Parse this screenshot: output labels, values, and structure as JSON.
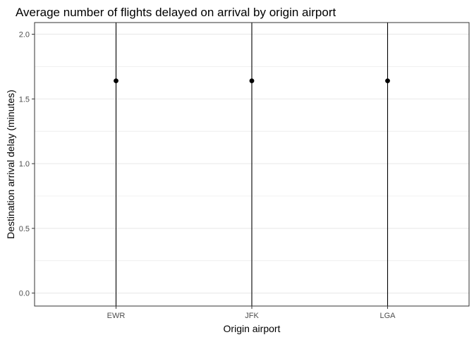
{
  "chart_data": {
    "type": "scatter",
    "title": "Average number of flights delayed on arrival by origin airport",
    "xlabel": "Origin airport",
    "ylabel": "Destination arrival delay (minutes)",
    "categories": [
      "EWR",
      "JFK",
      "LGA"
    ],
    "points": [
      {
        "x": "EWR",
        "y": 1.64
      },
      {
        "x": "JFK",
        "y": 1.64
      },
      {
        "x": "LGA",
        "y": 1.64
      }
    ],
    "error_bars": [
      {
        "x": "EWR",
        "lower": -0.1,
        "upper": 2.09
      },
      {
        "x": "JFK",
        "lower": -0.1,
        "upper": 2.09
      },
      {
        "x": "LGA",
        "lower": -0.1,
        "upper": 2.09
      }
    ],
    "yticks": [
      0.0,
      0.5,
      1.0,
      1.5,
      2.0
    ],
    "ytick_labels": [
      "0.0",
      "0.5",
      "1.0",
      "1.5",
      "2.0"
    ],
    "ylim": [
      -0.1,
      2.09
    ],
    "grid": true,
    "legend": "none",
    "colors": {
      "points": "#000000",
      "lines": "#000000",
      "grid": "#ebebeb",
      "panel_border": "#333333",
      "tick_text": "#4d4d4d",
      "axis_title": "#000000"
    }
  }
}
